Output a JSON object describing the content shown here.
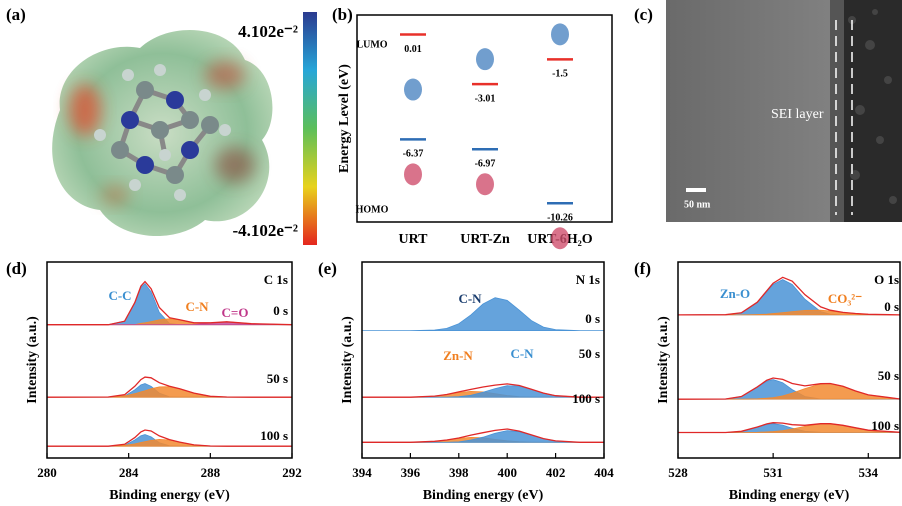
{
  "panel_a": {
    "label": "(a)",
    "colorbar": {
      "max_label": "4.102e⁻²",
      "min_label": "-4.102e⁻²"
    }
  },
  "panel_c": {
    "label": "(c)",
    "annotation": "SEI layer",
    "scale_bar": "50 nm"
  },
  "chart_data": [
    {
      "type": "energy-level",
      "panel_label": "(b)",
      "ylabel": "Energy Level (eV)",
      "categories": [
        "URT",
        "URT-Zn",
        "URT-6H₂O"
      ],
      "ylim": [
        -11.4,
        1.2
      ],
      "series": [
        {
          "name": "LUMO",
          "color": "#e8302a",
          "values": [
            0.01,
            -3.01,
            -1.5
          ]
        },
        {
          "name": "HOMO",
          "color": "#2e6db4",
          "values": [
            -6.37,
            -6.97,
            -10.26
          ]
        }
      ]
    },
    {
      "type": "area",
      "panel_label": "(d)",
      "xlabel": "Binding energy (eV)",
      "ylabel": "Intensity (a.u.)",
      "annotations": [
        "C 1s",
        "C-C",
        "C-N",
        "C=O",
        "0 s",
        "50 s",
        "100 s"
      ],
      "xlim": [
        280,
        292
      ],
      "xticks": [
        280,
        284,
        288,
        292
      ],
      "ylim": [
        0,
        100
      ],
      "x": [
        280,
        283,
        283.8,
        284.3,
        284.6,
        284.8,
        285.1,
        285.5,
        286,
        286.5,
        287.2,
        288,
        288.8,
        290,
        292
      ],
      "series": [
        {
          "color": "#4a93d6",
          "fill": true,
          "values": [
            68,
            68,
            69.8,
            79.3,
            87,
            89,
            84.8,
            74.3,
            68.6,
            68,
            68,
            68,
            68,
            68,
            68
          ]
        },
        {
          "color": "#f28a30",
          "fill": true,
          "values": [
            68,
            68,
            68,
            68,
            68.7,
            69,
            69.6,
            70.5,
            71,
            70.5,
            69,
            68.1,
            68,
            68,
            68
          ]
        },
        {
          "color": "#c44a98",
          "fill": true,
          "values": [
            68,
            68,
            68,
            68,
            68,
            68,
            68,
            68,
            68,
            68,
            68,
            68.9,
            69.5,
            68.5,
            68
          ]
        },
        {
          "color": "#e02828",
          "fill": false,
          "values": [
            68,
            68,
            69.8,
            79.3,
            87.7,
            90,
            86.4,
            76.8,
            71.6,
            70.5,
            69,
            69,
            69.5,
            68.5,
            68
          ]
        },
        {
          "color": "#4a93d6",
          "fill": true,
          "values": [
            31,
            31,
            31.6,
            34.8,
            37.3,
            38,
            36.6,
            33.1,
            31.2,
            31,
            31,
            31,
            31,
            31,
            31
          ]
        },
        {
          "color": "#f28a30",
          "fill": true,
          "values": [
            31,
            31.1,
            31.7,
            32.8,
            33.7,
            34.3,
            35.3,
            36.3,
            36.4,
            35.3,
            33.1,
            31.5,
            31.1,
            31,
            31
          ]
        },
        {
          "color": "#e02828",
          "fill": false,
          "values": [
            31,
            31.1,
            32.3,
            36.6,
            40,
            41.3,
            40.9,
            38.4,
            36.6,
            35.3,
            33.1,
            31.5,
            31.1,
            31,
            31
          ]
        },
        {
          "color": "#4a93d6",
          "fill": true,
          "values": [
            6,
            6,
            6.5,
            9.2,
            11.4,
            12,
            10.8,
            7.8,
            6.2,
            6,
            6,
            6,
            6,
            6,
            6
          ]
        },
        {
          "color": "#f28a30",
          "fill": true,
          "values": [
            6,
            6,
            6.5,
            7.2,
            7.9,
            8.3,
            9,
            9.5,
            9.2,
            8.1,
            6.7,
            6.1,
            6,
            6,
            6
          ]
        },
        {
          "color": "#e02828",
          "fill": false,
          "values": [
            6,
            6,
            7,
            10.4,
            13.3,
            14.3,
            13.8,
            11.3,
            9.4,
            8.1,
            6.7,
            6.1,
            6,
            6,
            6
          ]
        }
      ]
    },
    {
      "type": "area",
      "panel_label": "(e)",
      "xlabel": "Binding energy (eV)",
      "ylabel": "Intensity (a.u.)",
      "annotations": [
        "N 1s",
        "C-N",
        "Zn-N",
        "C-N",
        "0 s",
        "50 s",
        "100 s"
      ],
      "xlim": [
        394,
        404
      ],
      "xticks": [
        394,
        396,
        398,
        400,
        402,
        404
      ],
      "ylim": [
        0,
        100
      ],
      "x": [
        394,
        396,
        397,
        397.5,
        398,
        398.5,
        399,
        399.5,
        400,
        400.5,
        401,
        401.5,
        402,
        403,
        404
      ],
      "series": [
        {
          "color": "#4a93d6",
          "fill": true,
          "values": [
            65,
            65,
            65.3,
            66.1,
            68.5,
            73,
            78.6,
            81.8,
            80.4,
            75.4,
            70.1,
            66.8,
            65.5,
            65,
            65
          ]
        },
        {
          "color": "#f28a30",
          "fill": true,
          "values": [
            31,
            31,
            31.6,
            32.4,
            33.4,
            34,
            33.7,
            32.8,
            31.9,
            31.3,
            31.1,
            31,
            31,
            31,
            31
          ]
        },
        {
          "color": "#4a93d6",
          "fill": true,
          "values": [
            31,
            31,
            31,
            31,
            31.3,
            32,
            33.5,
            35.4,
            36.9,
            36.7,
            35,
            33.1,
            31.8,
            31,
            31
          ]
        },
        {
          "color": "#e02828",
          "fill": false,
          "values": [
            31,
            31,
            31.6,
            32.4,
            33.7,
            35,
            36.2,
            37.2,
            37.8,
            37,
            35.1,
            33.1,
            31.8,
            31,
            31
          ]
        },
        {
          "color": "#f28a30",
          "fill": true,
          "values": [
            8,
            8,
            8.5,
            9.2,
            10,
            10.5,
            10.3,
            9.5,
            8.8,
            8.3,
            8.1,
            8,
            8,
            8,
            8
          ]
        },
        {
          "color": "#4a93d6",
          "fill": true,
          "values": [
            8,
            8,
            8,
            8,
            8.2,
            9.2,
            10.6,
            12.6,
            14,
            13.4,
            11.7,
            9.9,
            8.7,
            8,
            8
          ]
        },
        {
          "color": "#e02828",
          "fill": false,
          "values": [
            8,
            8,
            8.5,
            9.2,
            10.2,
            11.7,
            12.9,
            14.1,
            14.8,
            13.7,
            11.8,
            9.9,
            8.7,
            8,
            8
          ]
        }
      ]
    },
    {
      "type": "area",
      "panel_label": "(f)",
      "xlabel": "Binding energy (eV)",
      "ylabel": "Intensity (a.u.)",
      "annotations": [
        "O 1s",
        "Zn-O",
        "CO₃²⁻",
        "0 s",
        "50 s",
        "100 s"
      ],
      "xlim": [
        528,
        535
      ],
      "xticks": [
        528,
        531,
        534
      ],
      "ylim": [
        0,
        100
      ],
      "x": [
        528,
        529.5,
        530,
        530.5,
        530.8,
        531,
        531.3,
        531.6,
        532,
        532.5,
        532.8,
        533.2,
        533.6,
        534,
        535
      ],
      "series": [
        {
          "color": "#4a93d6",
          "fill": true,
          "values": [
            73,
            73.1,
            74.1,
            79.3,
            84.9,
            88.5,
            91,
            88.5,
            81,
            74.7,
            73.4,
            73,
            73,
            73,
            73
          ]
        },
        {
          "color": "#f28a30",
          "fill": true,
          "values": [
            73,
            73,
            73,
            73.2,
            73.4,
            73.7,
            74.2,
            74.7,
            75.3,
            75.4,
            75,
            74.3,
            73.7,
            73.3,
            73
          ]
        },
        {
          "color": "#e02828",
          "fill": false,
          "values": [
            73,
            73.1,
            74.1,
            79.5,
            85.3,
            89.2,
            92.2,
            90.2,
            83.3,
            77.1,
            75.4,
            74.3,
            73.7,
            73.3,
            73
          ]
        },
        {
          "color": "#4a93d6",
          "fill": true,
          "values": [
            30,
            30.1,
            31.4,
            36.1,
            39.2,
            40,
            38.4,
            34.9,
            31.4,
            30.1,
            30,
            30,
            30,
            30,
            30
          ]
        },
        {
          "color": "#f28a30",
          "fill": true,
          "values": [
            30,
            30,
            30,
            30.2,
            30.5,
            30.8,
            31.7,
            33.1,
            35.4,
            37.8,
            38,
            36.6,
            34.2,
            32.2,
            30.1
          ]
        },
        {
          "color": "#e02828",
          "fill": false,
          "values": [
            30,
            30.1,
            31.4,
            36.3,
            39.7,
            40.8,
            40.1,
            38,
            36.8,
            37.9,
            38,
            36.6,
            34.2,
            32.2,
            30.1
          ]
        },
        {
          "color": "#4a93d6",
          "fill": true,
          "values": [
            13,
            13,
            13.6,
            15.7,
            17.1,
            17.5,
            16.8,
            15.2,
            13.6,
            13.1,
            13,
            13,
            13,
            13,
            13
          ]
        },
        {
          "color": "#f28a30",
          "fill": true,
          "values": [
            13,
            13,
            13,
            13.1,
            13.3,
            13.5,
            14,
            14.8,
            16.1,
            17.4,
            17.5,
            16.7,
            15.4,
            14.2,
            13.1
          ]
        },
        {
          "color": "#e02828",
          "fill": false,
          "values": [
            13,
            13,
            13.6,
            15.8,
            17.4,
            18,
            17.8,
            17,
            16.7,
            17.5,
            17.5,
            16.7,
            15.4,
            14.2,
            13.1
          ]
        }
      ]
    }
  ]
}
